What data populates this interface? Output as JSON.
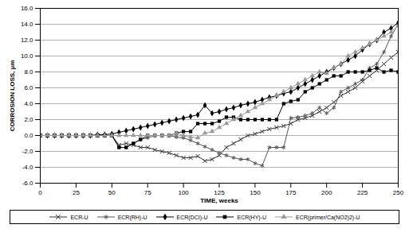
{
  "chart_data": {
    "type": "line",
    "x_label": "TIME, weeks",
    "y_label": "CORROSION LOSS, µm",
    "xlim": [
      0,
      250
    ],
    "xticks": [
      0,
      25,
      50,
      75,
      100,
      125,
      150,
      175,
      200,
      225,
      250
    ],
    "ylim": [
      -6,
      16
    ],
    "yticks": [
      {
        "value": -6,
        "label": "-6.0"
      },
      {
        "value": -4,
        "label": "-4.0"
      },
      {
        "value": -2,
        "label": "-2.0"
      },
      {
        "value": 0,
        "label": "0.0"
      },
      {
        "value": 2,
        "label": "2.0"
      },
      {
        "value": 4,
        "label": "4.0"
      },
      {
        "value": 6,
        "label": "6.0"
      },
      {
        "value": 8,
        "label": "8.0"
      },
      {
        "value": 10,
        "label": "10.0"
      },
      {
        "value": 12,
        "label": "12.0"
      },
      {
        "value": 14,
        "label": "14.0"
      },
      {
        "value": 16,
        "label": "16.0"
      }
    ],
    "grid": "y",
    "legend": "bottom",
    "x": [
      0,
      5,
      10,
      15,
      20,
      25,
      30,
      35,
      40,
      45,
      50,
      55,
      60,
      65,
      70,
      75,
      80,
      85,
      90,
      95,
      100,
      105,
      110,
      115,
      120,
      125,
      130,
      135,
      140,
      145,
      150,
      155,
      160,
      165,
      170,
      175,
      180,
      185,
      190,
      195,
      200,
      205,
      210,
      215,
      220,
      225,
      230,
      235,
      240,
      245,
      250
    ],
    "series": [
      {
        "name": "ECR-U",
        "color": "#333333",
        "marker": "times",
        "values": [
          0,
          0,
          0,
          0,
          0,
          0,
          0,
          0,
          0,
          0,
          0,
          -1.2,
          -1.0,
          -1.2,
          -1.5,
          -1.5,
          -1.8,
          -2.0,
          -2.2,
          -2.5,
          -2.8,
          -2.8,
          -2.6,
          -3.2,
          -3.0,
          -2.5,
          -1.5,
          -1.0,
          -0.5,
          0,
          0.2,
          0.5,
          0.8,
          1.0,
          1.2,
          1.5,
          2.0,
          2.2,
          2.5,
          3.0,
          3.5,
          4.2,
          5.0,
          5.5,
          6.0,
          6.8,
          7.5,
          8.2,
          9.0,
          9.8,
          10.5
        ]
      },
      {
        "name": "ECR(RH)-U",
        "color": "#555555",
        "marker": "asterisk",
        "values": [
          0,
          0,
          0,
          0,
          0,
          0,
          0,
          0,
          0,
          0,
          0,
          -1.5,
          -1.5,
          -1.0,
          -0.5,
          -0.3,
          0,
          0,
          0,
          -0.2,
          -0.3,
          -0.6,
          -1.0,
          -1.4,
          -1.8,
          -2.2,
          -2.5,
          -2.8,
          -3.0,
          -3.0,
          -3.5,
          -3.8,
          -1.5,
          -1.5,
          -1.5,
          2.2,
          2.3,
          2.5,
          2.8,
          3.5,
          2.8,
          3.5,
          5.5,
          6.0,
          6.5,
          7.0,
          8.5,
          9.0,
          10.5,
          12.5,
          14.0
        ]
      },
      {
        "name": "ECR(DCI)-U",
        "color": "#000000",
        "marker": "diamond",
        "values": [
          0,
          0,
          0,
          0,
          0,
          0,
          0,
          0,
          0.1,
          0.1,
          0.2,
          0.4,
          0.6,
          0.8,
          1.0,
          1.2,
          1.4,
          1.6,
          1.8,
          2.0,
          2.2,
          2.4,
          2.6,
          3.8,
          2.8,
          3.0,
          3.3,
          3.5,
          3.8,
          4.0,
          4.2,
          4.5,
          4.8,
          5.0,
          5.3,
          5.5,
          6.0,
          6.5,
          7.0,
          7.5,
          8.0,
          8.5,
          9.0,
          9.5,
          10.0,
          10.8,
          11.5,
          12.0,
          13.0,
          13.5,
          14.2
        ]
      },
      {
        "name": "ECR(HY)-U",
        "color": "#000000",
        "marker": "square",
        "values": [
          0,
          0,
          0,
          0,
          0,
          0,
          0,
          0,
          0,
          0,
          0,
          -1.5,
          -1.5,
          -1.0,
          -0.5,
          0,
          0,
          0,
          0,
          0.3,
          0.5,
          0.5,
          1.5,
          1.5,
          1.5,
          1.8,
          2.3,
          2.3,
          2.0,
          2.0,
          2.0,
          2.0,
          2.0,
          2.0,
          4.0,
          4.3,
          4.5,
          5.5,
          6.0,
          6.5,
          7.0,
          7.5,
          7.5,
          8.0,
          8.0,
          8.0,
          8.2,
          8.5,
          8.0,
          8.2,
          8.0
        ]
      },
      {
        "name": "ECR(primer/Ca(NO2)2)-U",
        "color": "#999999",
        "marker": "triangle",
        "values": [
          0,
          0,
          0,
          0,
          0,
          0,
          0,
          0,
          0,
          0,
          0,
          0,
          0,
          0,
          0,
          0,
          0,
          0,
          0,
          0.3,
          0,
          -0.2,
          -0.3,
          0.3,
          0.5,
          1.0,
          1.5,
          2.0,
          2.5,
          3.0,
          3.5,
          4.0,
          4.5,
          5.0,
          5.5,
          6.0,
          6.5,
          7.0,
          7.5,
          8.0,
          7.8,
          8.5,
          9.0,
          10.0,
          10.5,
          11.0,
          11.5,
          12.0,
          12.5,
          13.0,
          13.8
        ]
      }
    ]
  }
}
